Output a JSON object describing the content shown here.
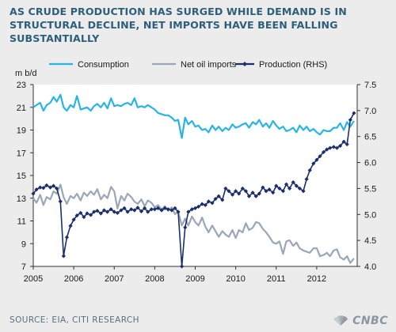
{
  "headline": "AS CRUDE PRODUCTION HAS SURGED WHILE DEMAND IS IN STRUCTURAL DECLINE, NET IMPORTS HAVE BEEN FALLING SUBSTANTIALLY",
  "footer": {
    "source": "SOURCE: EIA, CITI RESEARCH",
    "brand": "CNBC"
  },
  "colors": {
    "background": "#ececec",
    "headline": "#2d5f7b",
    "consumption": "#29b5e3",
    "net_imports": "#9aa7b9",
    "production": "#1c2f6b"
  },
  "chart_data": {
    "type": "line",
    "ylabel": "m b/d",
    "xlim": [
      2005,
      2013
    ],
    "x_ticks": [
      "2005",
      "2006",
      "2007",
      "2008",
      "2009",
      "2010",
      "2011",
      "2012"
    ],
    "ylim_left": [
      7,
      23
    ],
    "y_ticks_left": [
      "7",
      "9",
      "11",
      "13",
      "15",
      "17",
      "19",
      "21",
      "23"
    ],
    "ylim_right": [
      4.0,
      7.5
    ],
    "y_ticks_right": [
      "4.0",
      "4.5",
      "5.0",
      "5.5",
      "6.0",
      "6.5",
      "7.0",
      "7.5"
    ],
    "legend_position": "top",
    "series": [
      {
        "name": "Consumption",
        "axis": "left",
        "marker": "none",
        "points": [
          [
            2005.0,
            21.0
          ],
          [
            2005.08,
            21.2
          ],
          [
            2005.17,
            21.4
          ],
          [
            2005.25,
            20.7
          ],
          [
            2005.33,
            21.2
          ],
          [
            2005.42,
            21.4
          ],
          [
            2005.5,
            21.9
          ],
          [
            2005.58,
            21.5
          ],
          [
            2005.67,
            22.1
          ],
          [
            2005.75,
            21.0
          ],
          [
            2005.83,
            20.7
          ],
          [
            2005.92,
            21.2
          ],
          [
            2006.0,
            21.0
          ],
          [
            2006.08,
            22.0
          ],
          [
            2006.17,
            20.8
          ],
          [
            2006.25,
            20.9
          ],
          [
            2006.33,
            21.0
          ],
          [
            2006.42,
            20.7
          ],
          [
            2006.5,
            21.1
          ],
          [
            2006.58,
            21.3
          ],
          [
            2006.67,
            21.0
          ],
          [
            2006.75,
            21.4
          ],
          [
            2006.83,
            20.9
          ],
          [
            2006.92,
            21.8
          ],
          [
            2007.0,
            21.1
          ],
          [
            2007.08,
            21.2
          ],
          [
            2007.17,
            21.1
          ],
          [
            2007.25,
            21.3
          ],
          [
            2007.33,
            21.4
          ],
          [
            2007.42,
            21.2
          ],
          [
            2007.5,
            21.8
          ],
          [
            2007.58,
            21.0
          ],
          [
            2007.67,
            21.1
          ],
          [
            2007.75,
            21.0
          ],
          [
            2007.83,
            21.2
          ],
          [
            2007.92,
            21.0
          ],
          [
            2008.0,
            20.8
          ],
          [
            2008.08,
            20.5
          ],
          [
            2008.17,
            20.4
          ],
          [
            2008.25,
            20.3
          ],
          [
            2008.33,
            20.3
          ],
          [
            2008.42,
            20.1
          ],
          [
            2008.5,
            19.8
          ],
          [
            2008.58,
            19.9
          ],
          [
            2008.67,
            18.3
          ],
          [
            2008.75,
            20.1
          ],
          [
            2008.83,
            19.5
          ],
          [
            2008.92,
            19.8
          ],
          [
            2009.0,
            19.3
          ],
          [
            2009.08,
            19.4
          ],
          [
            2009.17,
            19.0
          ],
          [
            2009.25,
            19.1
          ],
          [
            2009.33,
            18.8
          ],
          [
            2009.42,
            19.4
          ],
          [
            2009.5,
            19.0
          ],
          [
            2009.58,
            19.3
          ],
          [
            2009.67,
            18.9
          ],
          [
            2009.75,
            19.2
          ],
          [
            2009.83,
            19.0
          ],
          [
            2009.92,
            19.5
          ],
          [
            2010.0,
            19.2
          ],
          [
            2010.08,
            19.3
          ],
          [
            2010.17,
            19.5
          ],
          [
            2010.25,
            19.6
          ],
          [
            2010.33,
            19.2
          ],
          [
            2010.42,
            19.7
          ],
          [
            2010.5,
            19.5
          ],
          [
            2010.58,
            19.9
          ],
          [
            2010.67,
            19.3
          ],
          [
            2010.75,
            19.6
          ],
          [
            2010.83,
            19.2
          ],
          [
            2010.92,
            19.8
          ],
          [
            2011.0,
            19.4
          ],
          [
            2011.08,
            19.1
          ],
          [
            2011.17,
            19.3
          ],
          [
            2011.25,
            18.9
          ],
          [
            2011.33,
            19.0
          ],
          [
            2011.42,
            19.2
          ],
          [
            2011.5,
            18.8
          ],
          [
            2011.58,
            19.4
          ],
          [
            2011.67,
            19.0
          ],
          [
            2011.75,
            19.3
          ],
          [
            2011.83,
            18.9
          ],
          [
            2011.92,
            19.1
          ],
          [
            2012.0,
            18.8
          ],
          [
            2012.08,
            18.6
          ],
          [
            2012.17,
            19.0
          ],
          [
            2012.25,
            18.9
          ],
          [
            2012.33,
            18.9
          ],
          [
            2012.42,
            19.2
          ],
          [
            2012.5,
            19.2
          ],
          [
            2012.58,
            19.6
          ],
          [
            2012.67,
            19.0
          ],
          [
            2012.75,
            19.7
          ],
          [
            2012.83,
            19.3
          ],
          [
            2012.92,
            19.8
          ]
        ]
      },
      {
        "name": "Net oil imports",
        "axis": "left",
        "marker": "none",
        "points": [
          [
            2005.0,
            13.0
          ],
          [
            2005.08,
            12.6
          ],
          [
            2005.17,
            13.3
          ],
          [
            2005.25,
            12.4
          ],
          [
            2005.33,
            13.1
          ],
          [
            2005.42,
            12.9
          ],
          [
            2005.5,
            13.6
          ],
          [
            2005.58,
            13.4
          ],
          [
            2005.67,
            14.2
          ],
          [
            2005.75,
            13.1
          ],
          [
            2005.83,
            12.5
          ],
          [
            2005.92,
            13.2
          ],
          [
            2006.0,
            13.0
          ],
          [
            2006.08,
            13.4
          ],
          [
            2006.17,
            12.8
          ],
          [
            2006.25,
            13.5
          ],
          [
            2006.33,
            13.2
          ],
          [
            2006.42,
            13.6
          ],
          [
            2006.5,
            13.3
          ],
          [
            2006.58,
            13.8
          ],
          [
            2006.67,
            12.9
          ],
          [
            2006.75,
            13.3
          ],
          [
            2006.83,
            13.0
          ],
          [
            2006.92,
            14.0
          ],
          [
            2007.0,
            13.6
          ],
          [
            2007.08,
            12.1
          ],
          [
            2007.17,
            13.2
          ],
          [
            2007.25,
            12.8
          ],
          [
            2007.33,
            13.4
          ],
          [
            2007.42,
            13.1
          ],
          [
            2007.5,
            12.7
          ],
          [
            2007.58,
            12.5
          ],
          [
            2007.67,
            12.9
          ],
          [
            2007.75,
            12.3
          ],
          [
            2007.83,
            12.8
          ],
          [
            2007.92,
            12.6
          ],
          [
            2008.0,
            12.2
          ],
          [
            2008.08,
            12.4
          ],
          [
            2008.17,
            12.0
          ],
          [
            2008.25,
            12.3
          ],
          [
            2008.33,
            11.9
          ],
          [
            2008.42,
            12.2
          ],
          [
            2008.5,
            11.6
          ],
          [
            2008.58,
            11.8
          ],
          [
            2008.67,
            10.6
          ],
          [
            2008.75,
            11.2
          ],
          [
            2008.83,
            10.6
          ],
          [
            2008.92,
            11.4
          ],
          [
            2009.0,
            10.9
          ],
          [
            2009.08,
            10.6
          ],
          [
            2009.17,
            11.3
          ],
          [
            2009.25,
            10.5
          ],
          [
            2009.33,
            10.0
          ],
          [
            2009.42,
            10.6
          ],
          [
            2009.5,
            10.1
          ],
          [
            2009.58,
            9.6
          ],
          [
            2009.67,
            10.1
          ],
          [
            2009.75,
            9.8
          ],
          [
            2009.83,
            9.6
          ],
          [
            2009.92,
            10.2
          ],
          [
            2010.0,
            9.5
          ],
          [
            2010.08,
            10.2
          ],
          [
            2010.17,
            10.0
          ],
          [
            2010.25,
            10.8
          ],
          [
            2010.33,
            10.2
          ],
          [
            2010.42,
            10.4
          ],
          [
            2010.5,
            10.9
          ],
          [
            2010.58,
            10.8
          ],
          [
            2010.67,
            10.3
          ],
          [
            2010.75,
            10.0
          ],
          [
            2010.83,
            9.6
          ],
          [
            2010.92,
            9.1
          ],
          [
            2011.0,
            9.0
          ],
          [
            2011.08,
            9.2
          ],
          [
            2011.17,
            8.1
          ],
          [
            2011.25,
            9.2
          ],
          [
            2011.33,
            9.3
          ],
          [
            2011.42,
            8.8
          ],
          [
            2011.5,
            9.1
          ],
          [
            2011.58,
            8.6
          ],
          [
            2011.67,
            8.4
          ],
          [
            2011.75,
            8.3
          ],
          [
            2011.83,
            8.2
          ],
          [
            2011.92,
            8.6
          ],
          [
            2012.0,
            8.6
          ],
          [
            2012.08,
            7.9
          ],
          [
            2012.17,
            8.0
          ],
          [
            2012.25,
            8.2
          ],
          [
            2012.33,
            7.9
          ],
          [
            2012.42,
            8.4
          ],
          [
            2012.5,
            8.5
          ],
          [
            2012.58,
            7.8
          ],
          [
            2012.67,
            7.6
          ],
          [
            2012.75,
            7.9
          ],
          [
            2012.83,
            7.3
          ],
          [
            2012.92,
            7.7
          ]
        ]
      },
      {
        "name": "Production (RHS)",
        "axis": "right",
        "marker": "diamond",
        "points": [
          [
            2005.0,
            5.4
          ],
          [
            2005.08,
            5.48
          ],
          [
            2005.17,
            5.52
          ],
          [
            2005.25,
            5.51
          ],
          [
            2005.33,
            5.56
          ],
          [
            2005.42,
            5.52
          ],
          [
            2005.5,
            5.55
          ],
          [
            2005.58,
            5.5
          ],
          [
            2005.67,
            5.25
          ],
          [
            2005.75,
            4.2
          ],
          [
            2005.83,
            4.56
          ],
          [
            2005.92,
            4.78
          ],
          [
            2006.0,
            4.9
          ],
          [
            2006.08,
            4.98
          ],
          [
            2006.17,
            5.03
          ],
          [
            2006.25,
            4.95
          ],
          [
            2006.33,
            5.02
          ],
          [
            2006.42,
            4.99
          ],
          [
            2006.5,
            5.05
          ],
          [
            2006.58,
            5.07
          ],
          [
            2006.67,
            5.02
          ],
          [
            2006.75,
            5.08
          ],
          [
            2006.83,
            5.05
          ],
          [
            2006.92,
            5.1
          ],
          [
            2007.0,
            5.05
          ],
          [
            2007.08,
            5.03
          ],
          [
            2007.17,
            5.08
          ],
          [
            2007.25,
            5.12
          ],
          [
            2007.33,
            5.05
          ],
          [
            2007.42,
            5.1
          ],
          [
            2007.5,
            5.08
          ],
          [
            2007.58,
            5.13
          ],
          [
            2007.67,
            5.06
          ],
          [
            2007.75,
            5.12
          ],
          [
            2007.83,
            5.05
          ],
          [
            2007.92,
            5.1
          ],
          [
            2008.0,
            5.1
          ],
          [
            2008.08,
            5.12
          ],
          [
            2008.17,
            5.08
          ],
          [
            2008.25,
            5.12
          ],
          [
            2008.33,
            5.1
          ],
          [
            2008.42,
            5.08
          ],
          [
            2008.5,
            5.12
          ],
          [
            2008.58,
            5.05
          ],
          [
            2008.67,
            4.0
          ],
          [
            2008.75,
            4.75
          ],
          [
            2008.83,
            5.05
          ],
          [
            2008.92,
            5.1
          ],
          [
            2009.0,
            5.12
          ],
          [
            2009.08,
            5.15
          ],
          [
            2009.17,
            5.2
          ],
          [
            2009.25,
            5.18
          ],
          [
            2009.33,
            5.25
          ],
          [
            2009.42,
            5.22
          ],
          [
            2009.5,
            5.3
          ],
          [
            2009.58,
            5.35
          ],
          [
            2009.67,
            5.28
          ],
          [
            2009.75,
            5.5
          ],
          [
            2009.83,
            5.45
          ],
          [
            2009.92,
            5.38
          ],
          [
            2010.0,
            5.45
          ],
          [
            2010.08,
            5.4
          ],
          [
            2010.17,
            5.5
          ],
          [
            2010.25,
            5.45
          ],
          [
            2010.33,
            5.35
          ],
          [
            2010.42,
            5.42
          ],
          [
            2010.5,
            5.35
          ],
          [
            2010.58,
            5.4
          ],
          [
            2010.67,
            5.52
          ],
          [
            2010.75,
            5.45
          ],
          [
            2010.83,
            5.48
          ],
          [
            2010.92,
            5.42
          ],
          [
            2011.0,
            5.55
          ],
          [
            2011.08,
            5.5
          ],
          [
            2011.17,
            5.45
          ],
          [
            2011.25,
            5.58
          ],
          [
            2011.33,
            5.5
          ],
          [
            2011.42,
            5.62
          ],
          [
            2011.5,
            5.55
          ],
          [
            2011.58,
            5.5
          ],
          [
            2011.67,
            5.45
          ],
          [
            2011.75,
            5.68
          ],
          [
            2011.83,
            5.85
          ],
          [
            2011.92,
            5.98
          ],
          [
            2012.0,
            6.05
          ],
          [
            2012.08,
            6.12
          ],
          [
            2012.17,
            6.2
          ],
          [
            2012.25,
            6.25
          ],
          [
            2012.33,
            6.28
          ],
          [
            2012.42,
            6.3
          ],
          [
            2012.5,
            6.28
          ],
          [
            2012.58,
            6.32
          ],
          [
            2012.67,
            6.4
          ],
          [
            2012.75,
            6.35
          ],
          [
            2012.83,
            6.82
          ],
          [
            2012.92,
            6.95
          ]
        ]
      }
    ]
  }
}
